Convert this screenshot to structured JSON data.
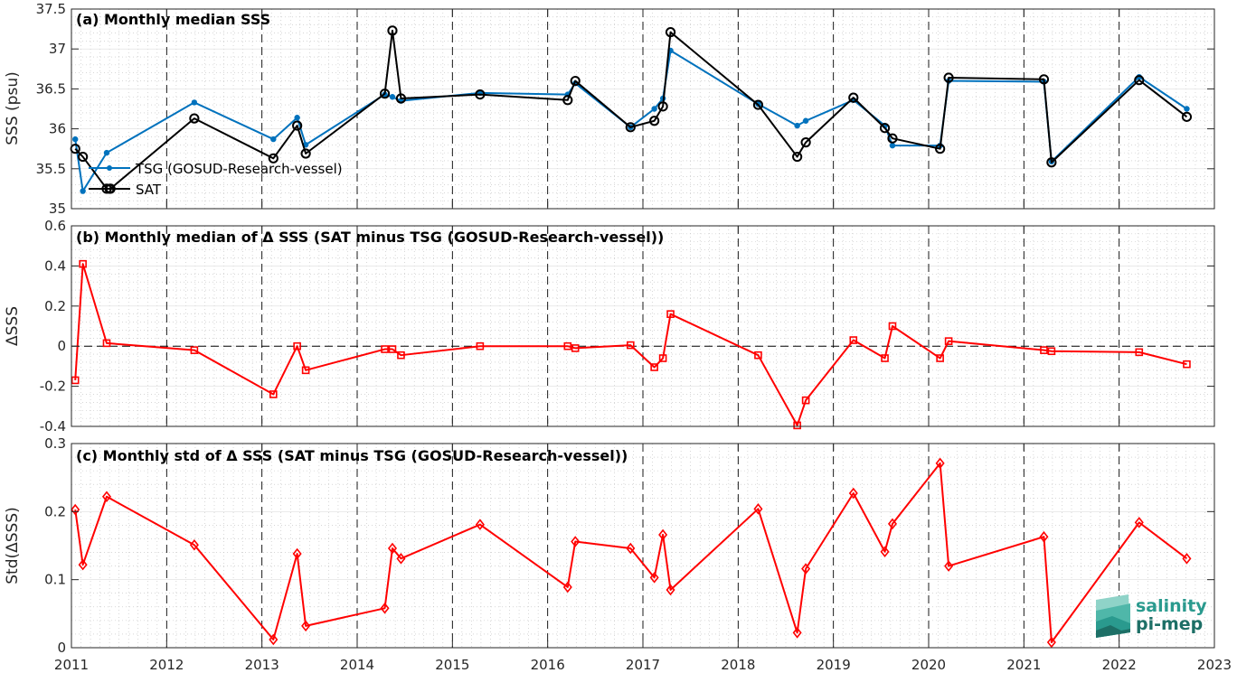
{
  "chart_data": [
    {
      "type": "line",
      "title": "(a) Monthly median SSS",
      "ylabel": "SSS (psu)",
      "xlim": [
        2011,
        2023
      ],
      "ylim": [
        35,
        37.5
      ],
      "x_ticks": [
        "2011",
        "2012",
        "2013",
        "2014",
        "2015",
        "2016",
        "2017",
        "2018",
        "2019",
        "2020",
        "2021",
        "2022",
        "2023"
      ],
      "y_ticks": [
        "35",
        "35.5",
        "36",
        "36.5",
        "37",
        "37.5"
      ],
      "grid": true,
      "legend_position": "left",
      "series": [
        {
          "name": "TSG (GOSUD-Research-vessel)",
          "color": "#0072BD",
          "marker": "dot",
          "x": [
            2011.04,
            2011.12,
            2011.37,
            2012.29,
            2013.12,
            2013.37,
            2013.46,
            2014.29,
            2014.37,
            2014.46,
            2015.29,
            2016.21,
            2016.29,
            2016.87,
            2017.12,
            2017.21,
            2017.29,
            2018.21,
            2018.62,
            2018.71,
            2019.21,
            2019.54,
            2019.62,
            2020.12,
            2020.21,
            2021.21,
            2021.29,
            2022.21,
            2022.71
          ],
          "y": [
            35.87,
            35.22,
            35.7,
            36.33,
            35.87,
            36.14,
            35.8,
            36.43,
            36.4,
            36.35,
            36.45,
            36.43,
            36.57,
            36.02,
            36.25,
            36.38,
            36.98,
            36.31,
            36.04,
            36.1,
            36.36,
            36.04,
            35.79,
            35.79,
            36.6,
            36.59,
            35.59,
            36.65,
            36.25
          ]
        },
        {
          "name": "SAT",
          "color": "#000000",
          "marker": "circle",
          "x": [
            2011.04,
            2011.12,
            2011.37,
            2011.41,
            2012.29,
            2013.12,
            2013.37,
            2013.46,
            2014.29,
            2014.37,
            2014.46,
            2015.29,
            2016.21,
            2016.29,
            2016.87,
            2017.12,
            2017.21,
            2017.29,
            2018.21,
            2018.62,
            2018.71,
            2019.21,
            2019.54,
            2019.62,
            2020.12,
            2020.21,
            2021.21,
            2021.29,
            2022.21,
            2022.71
          ],
          "y": [
            35.75,
            35.65,
            35.25,
            35.25,
            36.13,
            35.63,
            36.04,
            35.69,
            36.44,
            37.23,
            36.38,
            36.43,
            36.36,
            36.6,
            36.02,
            36.1,
            36.28,
            37.21,
            36.3,
            35.65,
            35.83,
            36.39,
            36.01,
            35.88,
            35.75,
            36.64,
            36.62,
            35.58,
            36.61,
            36.15
          ]
        }
      ]
    },
    {
      "type": "line",
      "title": "(b) Monthly median of Δ SSS (SAT minus TSG (GOSUD-Research-vessel))",
      "ylabel": "ΔSSS",
      "xlim": [
        2011,
        2023
      ],
      "ylim": [
        -0.4,
        0.6
      ],
      "y_ticks": [
        "-0.4",
        "-0.2",
        "0",
        "0.2",
        "0.4",
        "0.6"
      ],
      "zero_line": true,
      "grid": true,
      "series": [
        {
          "color": "#FF0000",
          "marker": "square",
          "x": [
            2011.04,
            2011.12,
            2011.37,
            2012.29,
            2013.12,
            2013.37,
            2013.46,
            2014.29,
            2014.37,
            2014.46,
            2015.29,
            2016.21,
            2016.29,
            2016.87,
            2017.12,
            2017.21,
            2017.29,
            2018.21,
            2018.62,
            2018.71,
            2019.21,
            2019.54,
            2019.62,
            2020.12,
            2020.21,
            2021.21,
            2021.29,
            2022.21,
            2022.71
          ],
          "y": [
            -0.17,
            0.41,
            0.015,
            -0.02,
            -0.24,
            0.0,
            -0.12,
            -0.015,
            -0.015,
            -0.045,
            0.0,
            0.0,
            -0.01,
            0.005,
            -0.105,
            -0.06,
            0.16,
            -0.045,
            -0.395,
            -0.27,
            0.03,
            -0.06,
            0.1,
            -0.06,
            0.025,
            -0.02,
            -0.025,
            -0.03,
            -0.09
          ]
        }
      ]
    },
    {
      "type": "line",
      "title": "(c) Monthly std of Δ SSS (SAT minus TSG (GOSUD-Research-vessel))",
      "ylabel": "Std(ΔSSS)",
      "xlim": [
        2011,
        2023
      ],
      "ylim": [
        0,
        0.3
      ],
      "y_ticks": [
        "0",
        "0.1",
        "0.2",
        "0.3"
      ],
      "grid": true,
      "series": [
        {
          "color": "#FF0000",
          "marker": "diamond",
          "x": [
            2011.04,
            2011.12,
            2011.37,
            2012.29,
            2013.12,
            2013.37,
            2013.46,
            2014.29,
            2014.37,
            2014.46,
            2015.29,
            2016.21,
            2016.29,
            2016.87,
            2017.12,
            2017.21,
            2017.29,
            2018.21,
            2018.62,
            2018.71,
            2019.21,
            2019.54,
            2019.62,
            2020.12,
            2020.21,
            2021.21,
            2021.29,
            2022.21,
            2022.71
          ],
          "y": [
            0.203,
            0.122,
            0.222,
            0.151,
            0.012,
            0.138,
            0.032,
            0.058,
            0.146,
            0.131,
            0.181,
            0.089,
            0.156,
            0.146,
            0.103,
            0.166,
            0.085,
            0.204,
            0.022,
            0.116,
            0.227,
            0.141,
            0.182,
            0.271,
            0.12,
            0.163,
            0.008,
            0.184,
            0.131
          ]
        }
      ]
    }
  ],
  "logo": {
    "line1": "salinity",
    "line2": "pi-mep",
    "colors": [
      "#8fd3c8",
      "#2a9a8e",
      "#1d6f66"
    ]
  }
}
